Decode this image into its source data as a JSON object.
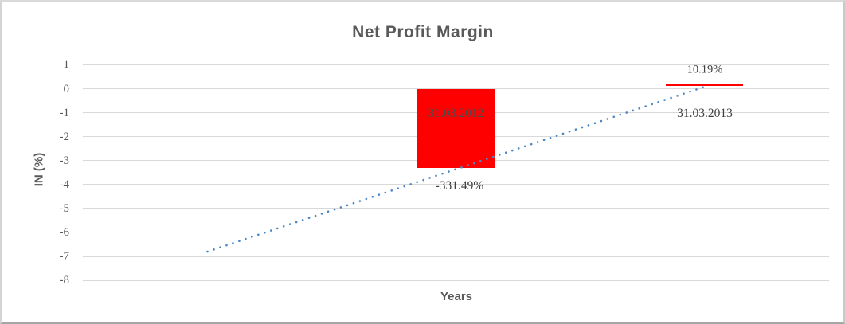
{
  "chart_data": {
    "type": "bar",
    "title": "Net Profit Margin",
    "xlabel": "Years",
    "ylabel": "IN (%)",
    "categories": [
      "31.03.2012",
      "31.03.2013"
    ],
    "series": [
      {
        "name": "Net Profit Margin",
        "values_pct": [
          -331.49,
          10.19
        ],
        "plotted_values": [
          -3.3149,
          0.1019
        ],
        "value_labels": [
          "-331.49%",
          "10.19%"
        ]
      }
    ],
    "y_ticks": [
      1,
      0,
      -1,
      -2,
      -3,
      -4,
      -5,
      -6,
      -7,
      -8
    ],
    "ylim": [
      -8,
      1
    ],
    "grid": true,
    "legend": "none",
    "trendline": {
      "type": "linear",
      "style": "dotted",
      "points": [
        {
          "x_offset_categories": -1,
          "value": -6.8
        },
        {
          "x_offset_categories": 1,
          "value": 0.08
        }
      ]
    }
  },
  "colors": {
    "bar": "#ff0000",
    "trendline": "#4d88c4",
    "gridline": "#d9d9d9",
    "title": "#595959",
    "axis_title": "#595959",
    "tick_label": "#595959",
    "data_label": "#404040",
    "in_bar_label": "#4c4c4c"
  }
}
